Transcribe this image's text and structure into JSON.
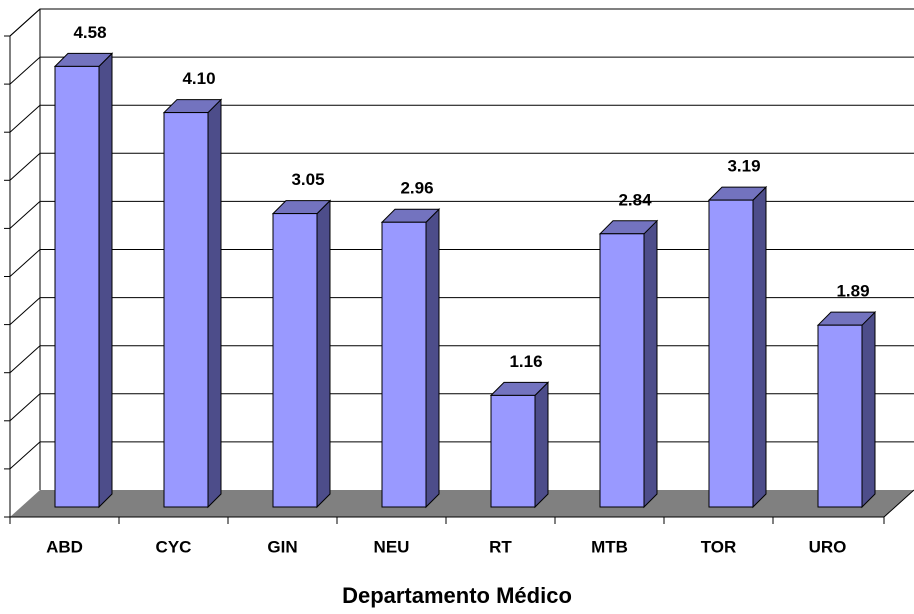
{
  "chart_data": {
    "type": "bar3d",
    "x_label": "Departamento Médico",
    "categories": [
      "ABD",
      "CYC",
      "GIN",
      "NEU",
      "RT",
      "MTB",
      "TOR",
      "URO"
    ],
    "values": [
      4.58,
      4.1,
      3.05,
      2.96,
      1.16,
      2.84,
      3.19,
      1.89
    ],
    "value_labels": [
      "4.58",
      "4.10",
      "3.05",
      "2.96",
      "1.16",
      "2.84",
      "3.19",
      "1.89"
    ],
    "color": "#9999ff",
    "ylim": [
      0,
      5
    ],
    "yticks": [
      0,
      0.5,
      1,
      1.5,
      2,
      2.5,
      3,
      3.5,
      4,
      4.5,
      5
    ],
    "grid": true
  }
}
